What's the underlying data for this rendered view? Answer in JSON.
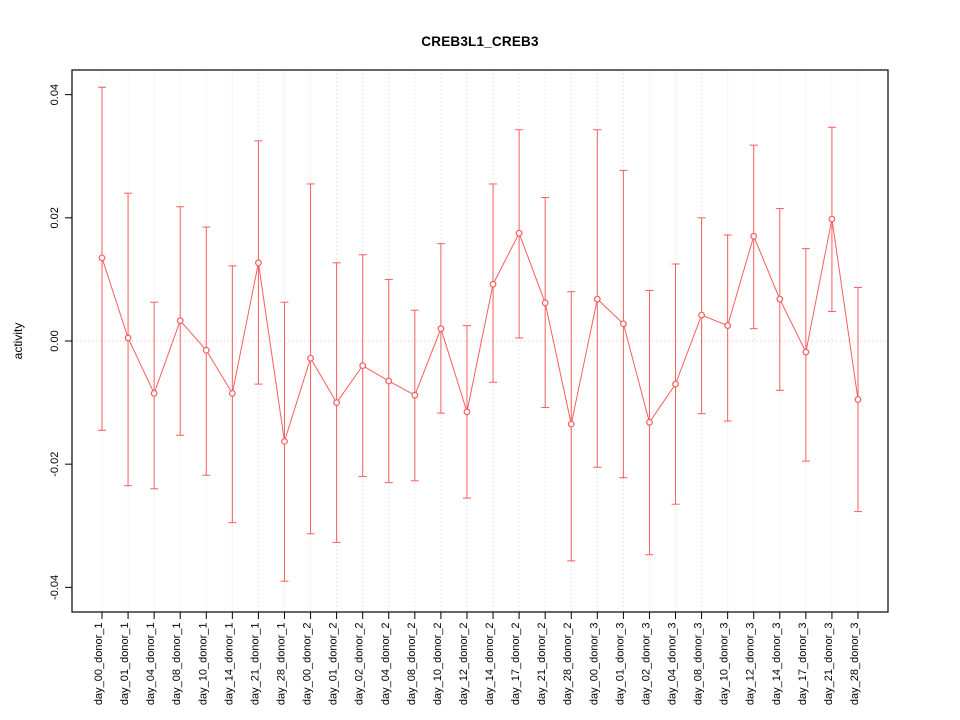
{
  "chart_data": {
    "type": "line",
    "title": "CREB3L1_CREB3",
    "ylabel": "activity",
    "xlabel": "",
    "ylim": [
      -0.044,
      0.044
    ],
    "yticks": [
      -0.04,
      -0.02,
      0.0,
      0.02,
      0.04
    ],
    "grid": "vertical-dotted",
    "zero_line": true,
    "legend": "none",
    "colors": {
      "series": "#f95d5d",
      "grid": "#d9d9d9",
      "zero_line": "#f2bcbc",
      "axis": "#000000",
      "point_fill": "#ffffff"
    },
    "categories": [
      "day_00_donor_1",
      "day_01_donor_1",
      "day_04_donor_1",
      "day_08_donor_1",
      "day_10_donor_1",
      "day_14_donor_1",
      "day_21_donor_1",
      "day_28_donor_1",
      "day_00_donor_2",
      "day_01_donor_2",
      "day_02_donor_2",
      "day_04_donor_2",
      "day_08_donor_2",
      "day_10_donor_2",
      "day_12_donor_2",
      "day_14_donor_2",
      "day_17_donor_2",
      "day_21_donor_2",
      "day_28_donor_2",
      "day_00_donor_3",
      "day_01_donor_3",
      "day_02_donor_3",
      "day_04_donor_3",
      "day_08_donor_3",
      "day_10_donor_3",
      "day_12_donor_3",
      "day_14_donor_3",
      "day_17_donor_3",
      "day_21_donor_3",
      "day_28_donor_3"
    ],
    "series": [
      {
        "name": "mean",
        "values": [
          0.0135,
          0.0005,
          -0.0085,
          0.0033,
          -0.0015,
          -0.0085,
          0.0127,
          -0.0163,
          -0.0028,
          -0.01,
          -0.004,
          -0.0065,
          -0.0088,
          0.002,
          -0.0115,
          0.0092,
          0.0175,
          0.0062,
          -0.0135,
          0.0068,
          0.0028,
          -0.0132,
          -0.007,
          0.0042,
          0.0025,
          0.017,
          0.0068,
          -0.0018,
          0.0198,
          -0.0095
        ]
      },
      {
        "name": "upper",
        "values": [
          0.0412,
          0.024,
          0.0063,
          0.0218,
          0.0185,
          0.0122,
          0.0325,
          0.0063,
          0.0255,
          0.0127,
          0.014,
          0.01,
          0.005,
          0.0158,
          0.0025,
          0.0255,
          0.0343,
          0.0233,
          0.008,
          0.0343,
          0.0277,
          0.0082,
          0.0125,
          0.02,
          0.0172,
          0.0318,
          0.0215,
          0.015,
          0.0347,
          0.0087
        ]
      },
      {
        "name": "lower",
        "values": [
          -0.0145,
          -0.0235,
          -0.024,
          -0.0153,
          -0.0218,
          -0.0295,
          -0.007,
          -0.039,
          -0.0313,
          -0.0327,
          -0.022,
          -0.023,
          -0.0227,
          -0.0117,
          -0.0255,
          -0.0067,
          0.0005,
          -0.0108,
          -0.0357,
          -0.0205,
          -0.0222,
          -0.0347,
          -0.0265,
          -0.0118,
          -0.013,
          0.002,
          -0.008,
          -0.0195,
          0.0048,
          -0.0277
        ]
      }
    ]
  }
}
